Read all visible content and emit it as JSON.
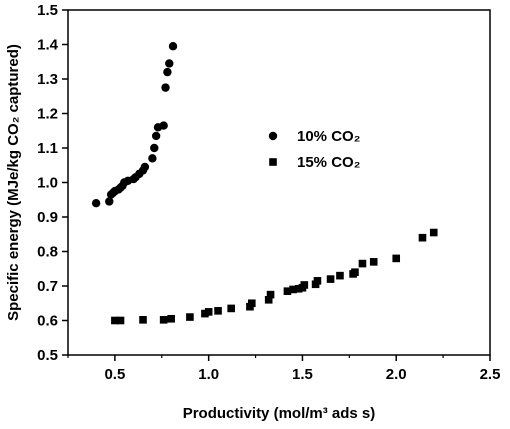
{
  "chart_data": {
    "type": "scatter",
    "xlabel": "Productivity (mol/m³ ads s)",
    "ylabel": "Specific energy (MJe/kg CO₂ captured)",
    "xlim": [
      0.25,
      2.5
    ],
    "ylim": [
      0.5,
      1.5
    ],
    "x_ticks": [
      "0.5",
      "1.0",
      "1.5",
      "2.0",
      "2.5"
    ],
    "y_ticks": [
      "0.5",
      "0.6",
      "0.7",
      "0.8",
      "0.9",
      "1.0",
      "1.1",
      "1.2",
      "1.3",
      "1.4",
      "1.5"
    ],
    "x_tick_values": [
      0.5,
      1.0,
      1.5,
      2.0,
      2.5
    ],
    "y_tick_values": [
      0.5,
      0.6,
      0.7,
      0.8,
      0.9,
      1.0,
      1.1,
      1.2,
      1.3,
      1.4,
      1.5
    ],
    "legend_position": "middle-right",
    "series": [
      {
        "name": "10% CO₂",
        "marker": "circle",
        "color": "#000000",
        "points": [
          [
            0.4,
            0.94
          ],
          [
            0.47,
            0.945
          ],
          [
            0.48,
            0.965
          ],
          [
            0.49,
            0.97
          ],
          [
            0.5,
            0.975
          ],
          [
            0.52,
            0.98
          ],
          [
            0.53,
            0.985
          ],
          [
            0.54,
            0.99
          ],
          [
            0.55,
            1.0
          ],
          [
            0.57,
            1.005
          ],
          [
            0.6,
            1.01
          ],
          [
            0.61,
            1.015
          ],
          [
            0.63,
            1.025
          ],
          [
            0.65,
            1.035
          ],
          [
            0.66,
            1.045
          ],
          [
            0.7,
            1.07
          ],
          [
            0.71,
            1.1
          ],
          [
            0.72,
            1.135
          ],
          [
            0.73,
            1.16
          ],
          [
            0.76,
            1.165
          ],
          [
            0.77,
            1.275
          ],
          [
            0.78,
            1.32
          ],
          [
            0.79,
            1.345
          ],
          [
            0.81,
            1.395
          ]
        ]
      },
      {
        "name": "15% CO₂",
        "marker": "square",
        "color": "#000000",
        "points": [
          [
            0.5,
            0.6
          ],
          [
            0.53,
            0.6
          ],
          [
            0.65,
            0.602
          ],
          [
            0.76,
            0.602
          ],
          [
            0.8,
            0.605
          ],
          [
            0.9,
            0.61
          ],
          [
            0.98,
            0.62
          ],
          [
            1.0,
            0.625
          ],
          [
            1.05,
            0.628
          ],
          [
            1.12,
            0.635
          ],
          [
            1.22,
            0.64
          ],
          [
            1.23,
            0.65
          ],
          [
            1.32,
            0.66
          ],
          [
            1.33,
            0.675
          ],
          [
            1.42,
            0.685
          ],
          [
            1.45,
            0.69
          ],
          [
            1.48,
            0.692
          ],
          [
            1.5,
            0.695
          ],
          [
            1.51,
            0.703
          ],
          [
            1.57,
            0.705
          ],
          [
            1.58,
            0.715
          ],
          [
            1.65,
            0.72
          ],
          [
            1.7,
            0.73
          ],
          [
            1.77,
            0.735
          ],
          [
            1.78,
            0.74
          ],
          [
            1.82,
            0.765
          ],
          [
            1.88,
            0.77
          ],
          [
            2.0,
            0.78
          ],
          [
            2.14,
            0.84
          ],
          [
            2.2,
            0.855
          ]
        ]
      }
    ]
  }
}
